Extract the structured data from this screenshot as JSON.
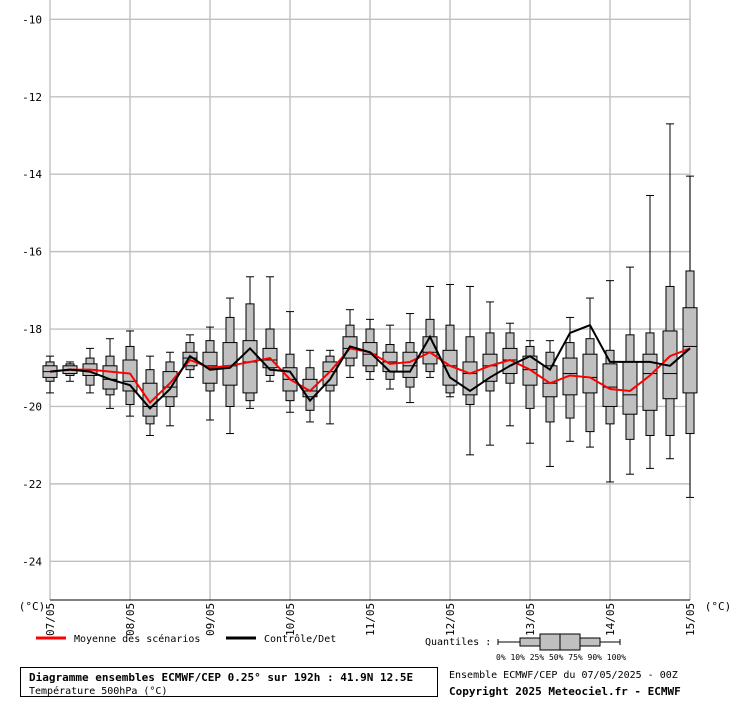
{
  "chart_data": {
    "type": "box",
    "title": "Diagramme ensembles ECMWF/CEP 0.25° sur 192h : 41.9N 12.5E",
    "subtitle": "Température 500hPa (°C)",
    "ylabel_left": "(°C)",
    "ylabel_right": "(°C)",
    "ylim": [
      -25,
      -9.5
    ],
    "yticks": [
      "-10",
      "-12",
      "-14",
      "-16",
      "-18",
      "-20",
      "-22",
      "-24"
    ],
    "xlim": [
      0,
      8
    ],
    "xticks": [
      "07/05",
      "08/05",
      "09/05",
      "10/05",
      "11/05",
      "12/05",
      "13/05",
      "14/05",
      "15/05"
    ],
    "grid": true,
    "series": [
      {
        "name": "Moyenne des scénarios",
        "color": "#ff0000",
        "x": [
          0,
          0.25,
          0.5,
          0.75,
          1,
          1.25,
          1.5,
          1.75,
          2,
          2.25,
          2.5,
          2.75,
          3,
          3.25,
          3.5,
          3.75,
          4,
          4.25,
          4.5,
          4.75,
          5,
          5.25,
          5.5,
          5.75,
          6,
          6.25,
          6.5,
          6.75,
          7,
          7.25,
          7.5,
          7.75,
          8
        ],
        "values": [
          -19.1,
          -19.05,
          -19.05,
          -19.1,
          -19.15,
          -19.9,
          -19.4,
          -18.8,
          -19.0,
          -18.95,
          -18.85,
          -18.75,
          -19.3,
          -19.6,
          -19.1,
          -18.5,
          -18.6,
          -18.9,
          -18.85,
          -18.6,
          -18.95,
          -19.15,
          -18.95,
          -18.8,
          -19.05,
          -19.4,
          -19.2,
          -19.25,
          -19.55,
          -19.6,
          -19.2,
          -18.7,
          -18.5
        ]
      },
      {
        "name": "Contrôle/Det",
        "color": "#000000",
        "x": [
          0,
          0.25,
          0.5,
          0.75,
          1,
          1.25,
          1.5,
          1.75,
          2,
          2.25,
          2.5,
          2.75,
          3,
          3.25,
          3.5,
          3.75,
          4,
          4.25,
          4.5,
          4.75,
          5,
          5.25,
          5.5,
          5.75,
          6,
          6.25,
          6.5,
          6.75,
          7,
          7.25,
          7.5,
          7.75,
          8
        ],
        "values": [
          -19.1,
          -19.05,
          -19.1,
          -19.3,
          -19.45,
          -20.05,
          -19.55,
          -18.7,
          -19.05,
          -19.0,
          -18.5,
          -19.05,
          -19.1,
          -19.85,
          -19.3,
          -18.45,
          -18.6,
          -19.1,
          -19.1,
          -18.2,
          -19.25,
          -19.6,
          -19.25,
          -18.95,
          -18.7,
          -19.05,
          -18.1,
          -17.9,
          -18.85,
          -18.85,
          -18.85,
          -18.95,
          -18.5
        ]
      }
    ],
    "boxes": [
      {
        "x": 0,
        "min": -19.65,
        "p10": -19.35,
        "p25": -19.25,
        "median": -19.1,
        "p75": -18.95,
        "p90": -18.85,
        "max": -18.7
      },
      {
        "x": 0.25,
        "min": -19.35,
        "p10": -19.2,
        "p25": -19.15,
        "median": -19.05,
        "p75": -18.95,
        "p90": -18.9,
        "max": -18.85
      },
      {
        "x": 0.5,
        "min": -19.65,
        "p10": -19.45,
        "p25": -19.2,
        "median": -19.05,
        "p75": -18.9,
        "p90": -18.75,
        "max": -18.5
      },
      {
        "x": 0.75,
        "min": -20.05,
        "p10": -19.7,
        "p25": -19.55,
        "median": -19.3,
        "p75": -18.95,
        "p90": -18.7,
        "max": -18.25
      },
      {
        "x": 1,
        "min": -20.25,
        "p10": -19.95,
        "p25": -19.6,
        "median": -19.35,
        "p75": -18.8,
        "p90": -18.45,
        "max": -18.05
      },
      {
        "x": 1.25,
        "min": -20.75,
        "p10": -20.45,
        "p25": -20.25,
        "median": -20.0,
        "p75": -19.4,
        "p90": -19.05,
        "max": -18.7
      },
      {
        "x": 1.5,
        "min": -20.5,
        "p10": -20.0,
        "p25": -19.75,
        "median": -19.5,
        "p75": -19.1,
        "p90": -18.85,
        "max": -18.6
      },
      {
        "x": 1.75,
        "min": -19.25,
        "p10": -19.05,
        "p25": -18.95,
        "median": -18.75,
        "p75": -18.6,
        "p90": -18.35,
        "max": -18.15
      },
      {
        "x": 2,
        "min": -20.35,
        "p10": -19.6,
        "p25": -19.4,
        "median": -18.95,
        "p75": -18.6,
        "p90": -18.3,
        "max": -17.95
      },
      {
        "x": 2.25,
        "min": -20.7,
        "p10": -20.0,
        "p25": -19.45,
        "median": -18.95,
        "p75": -18.35,
        "p90": -17.7,
        "max": -17.2
      },
      {
        "x": 2.5,
        "min": -20.05,
        "p10": -19.85,
        "p25": -19.65,
        "median": -18.85,
        "p75": -18.3,
        "p90": -17.35,
        "max": -16.65
      },
      {
        "x": 2.75,
        "min": -19.35,
        "p10": -19.2,
        "p25": -19.0,
        "median": -18.8,
        "p75": -18.5,
        "p90": -18.0,
        "max": -16.65
      },
      {
        "x": 3,
        "min": -20.15,
        "p10": -19.85,
        "p25": -19.6,
        "median": -19.3,
        "p75": -19.0,
        "p90": -18.65,
        "max": -17.55
      },
      {
        "x": 3.25,
        "min": -20.4,
        "p10": -20.1,
        "p25": -19.75,
        "median": -19.6,
        "p75": -19.3,
        "p90": -19.0,
        "max": -18.55
      },
      {
        "x": 3.5,
        "min": -20.45,
        "p10": -19.6,
        "p25": -19.45,
        "median": -19.1,
        "p75": -18.85,
        "p90": -18.7,
        "max": -18.55
      },
      {
        "x": 3.75,
        "min": -19.25,
        "p10": -18.95,
        "p25": -18.75,
        "median": -18.5,
        "p75": -18.2,
        "p90": -17.9,
        "max": -17.5
      },
      {
        "x": 4,
        "min": -19.3,
        "p10": -19.1,
        "p25": -18.95,
        "median": -18.65,
        "p75": -18.35,
        "p90": -18.0,
        "max": -17.75
      },
      {
        "x": 4.25,
        "min": -19.55,
        "p10": -19.3,
        "p25": -19.1,
        "median": -18.85,
        "p75": -18.6,
        "p90": -18.4,
        "max": -17.9
      },
      {
        "x": 4.5,
        "min": -19.9,
        "p10": -19.5,
        "p25": -19.25,
        "median": -18.95,
        "p75": -18.6,
        "p90": -18.35,
        "max": -17.6
      },
      {
        "x": 4.75,
        "min": -19.25,
        "p10": -19.1,
        "p25": -18.9,
        "median": -18.6,
        "p75": -18.2,
        "p90": -17.75,
        "max": -16.9
      },
      {
        "x": 5,
        "min": -19.75,
        "p10": -19.65,
        "p25": -19.45,
        "median": -18.95,
        "p75": -18.55,
        "p90": -17.9,
        "max": -16.85
      },
      {
        "x": 5.25,
        "min": -21.25,
        "p10": -19.95,
        "p25": -19.7,
        "median": -19.15,
        "p75": -18.85,
        "p90": -18.2,
        "max": -16.9
      },
      {
        "x": 5.5,
        "min": -21.0,
        "p10": -19.6,
        "p25": -19.35,
        "median": -18.95,
        "p75": -18.65,
        "p90": -18.1,
        "max": -17.3
      },
      {
        "x": 5.75,
        "min": -20.5,
        "p10": -19.4,
        "p25": -19.15,
        "median": -18.8,
        "p75": -18.5,
        "p90": -18.1,
        "max": -17.85
      },
      {
        "x": 6,
        "min": -20.95,
        "p10": -20.05,
        "p25": -19.45,
        "median": -19.05,
        "p75": -18.7,
        "p90": -18.45,
        "max": -18.3
      },
      {
        "x": 6.25,
        "min": -21.55,
        "p10": -20.4,
        "p25": -19.75,
        "median": -19.4,
        "p75": -18.95,
        "p90": -18.6,
        "max": -18.3
      },
      {
        "x": 6.5,
        "min": -20.9,
        "p10": -20.3,
        "p25": -19.7,
        "median": -19.15,
        "p75": -18.75,
        "p90": -18.35,
        "max": -17.7
      },
      {
        "x": 6.75,
        "min": -21.05,
        "p10": -20.65,
        "p25": -19.65,
        "median": -19.25,
        "p75": -18.65,
        "p90": -18.25,
        "max": -17.2
      },
      {
        "x": 7,
        "min": -21.95,
        "p10": -20.45,
        "p25": -20.0,
        "median": -19.5,
        "p75": -18.9,
        "p90": -18.55,
        "max": -16.75
      },
      {
        "x": 7.25,
        "min": -21.75,
        "p10": -20.85,
        "p25": -20.2,
        "median": -19.7,
        "p75": -18.85,
        "p90": -18.15,
        "max": -16.4
      },
      {
        "x": 7.5,
        "min": -21.6,
        "p10": -20.75,
        "p25": -20.1,
        "median": -19.15,
        "p75": -18.65,
        "p90": -18.1,
        "max": -14.55
      },
      {
        "x": 7.75,
        "min": -21.35,
        "p10": -20.75,
        "p25": -19.8,
        "median": -19.15,
        "p75": -18.05,
        "p90": -16.9,
        "max": -12.7
      },
      {
        "x": 8,
        "min": -22.35,
        "p10": -20.7,
        "p25": -19.65,
        "median": -18.45,
        "p75": -17.45,
        "p90": -16.5,
        "max": -14.05
      }
    ],
    "colors": {
      "box": "#c0c0c0",
      "grid": "#c0c0c0",
      "mean": "#ff0000",
      "control": "#000000"
    }
  },
  "legend": {
    "mean_label": "Moyenne des scénarios",
    "control_label": "Contrôle/Det",
    "quantiles_label": "Quantiles :",
    "quantile_ticks": "0%  10% 25% 50% 75% 90% 100%"
  },
  "footer": {
    "title": "Diagramme ensembles ECMWF/CEP 0.25° sur 192h : 41.9N 12.5E",
    "subtitle": "Température 500hPa (°C)",
    "ensemble_line": "Ensemble ECMWF/CEP du 07/05/2025 - 00Z",
    "copyright": "Copyright 2025 Meteociel.fr - ECMWF"
  }
}
